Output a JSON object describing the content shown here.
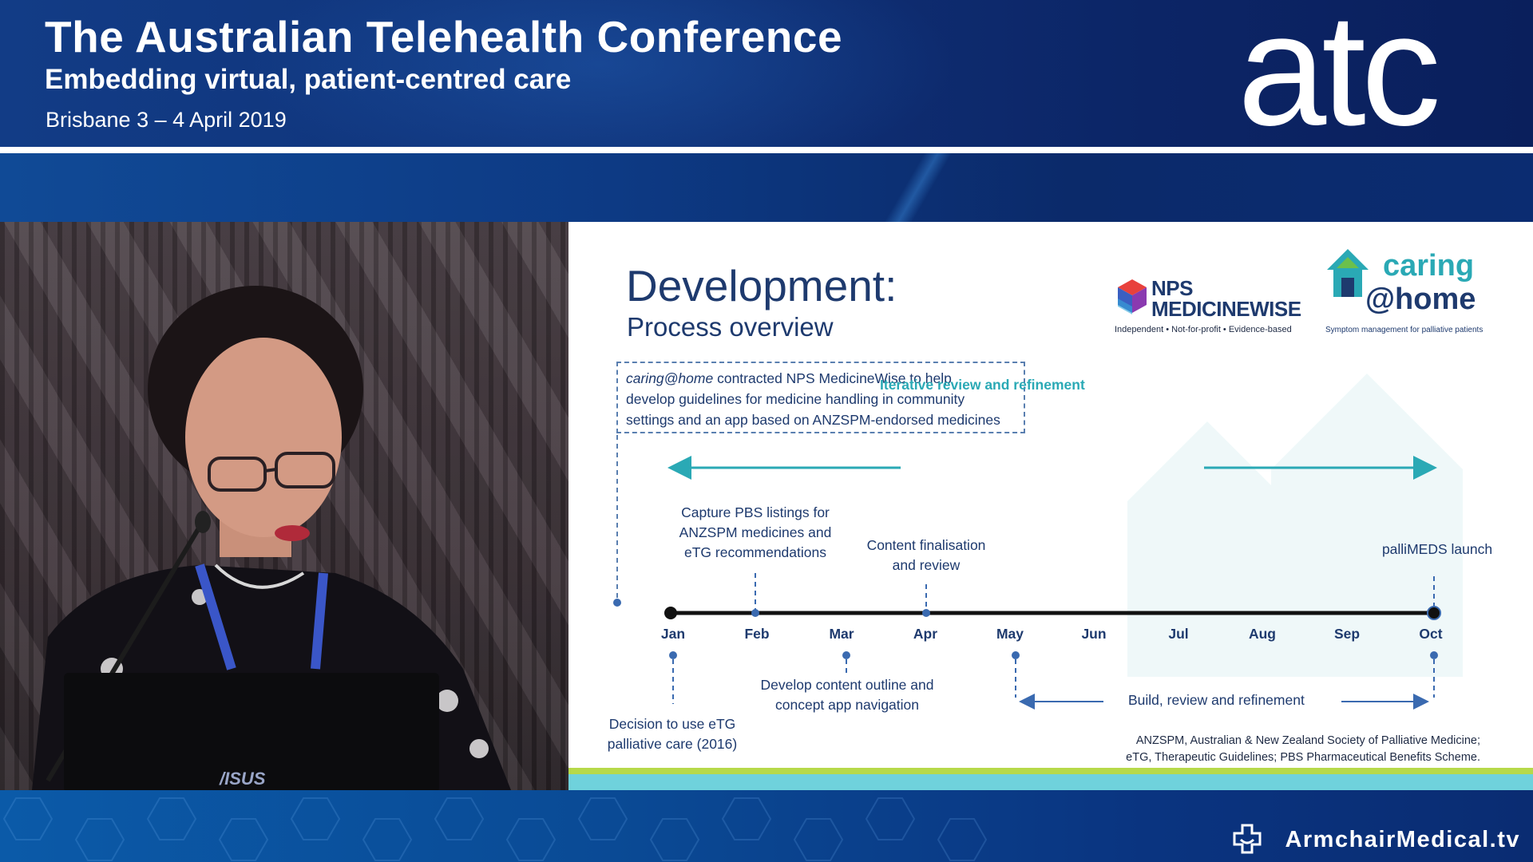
{
  "header": {
    "title": "The Australian Telehealth Conference",
    "subtitle": "Embedding virtual, patient-centred care",
    "place_date": "Brisbane 3 – 4 April 2019",
    "logo_text": "atc"
  },
  "speaker": {
    "laptop_brand": "/ISUS"
  },
  "slide": {
    "title": "Development:",
    "subtitle": "Process overview",
    "nps_logo": {
      "line1": "NPS",
      "line2": "MEDICINEWISE",
      "tagline": "Independent • Not-for-profit • Evidence-based"
    },
    "caring_logo": {
      "line1": "caring",
      "line2": "@home",
      "tagline": "Symptom management for palliative patients"
    },
    "note_box": {
      "brand": "caring@home",
      "text_line1": " contracted NPS MedicineWise to help",
      "text_line2": "develop guidelines for medicine handling in community",
      "text_line3": "settings and an app based on ANZSPM-endorsed medicines"
    },
    "iterative_label": "Iterative review and refinement",
    "months": [
      "Jan",
      "Feb",
      "Mar",
      "Apr",
      "May",
      "Jun",
      "Jul",
      "Aug",
      "Sep",
      "Oct"
    ],
    "events_above": {
      "feb": [
        "Capture PBS listings for",
        "ANZSPM medicines and",
        "eTG recommendations"
      ],
      "apr": [
        "Content finalisation",
        "and review"
      ],
      "oct": [
        "palliMEDS launch"
      ]
    },
    "events_below": {
      "jan": [
        "Decision to use eTG",
        "palliative care (2016)"
      ],
      "mar": [
        "Develop content outline and",
        "concept app navigation"
      ]
    },
    "build_label": "Build, review and refinement",
    "footnote": [
      "ANZSPM, Australian & New Zealand Society of Palliative Medicine;",
      "eTG, Therapeutic Guidelines; PBS Pharmaceutical Benefits Scheme."
    ]
  },
  "footer": {
    "brand": "ArmchairMedical.tv"
  },
  "colors": {
    "header_blue": "#0f3177",
    "slide_navy": "#1e3a6e",
    "teal": "#2aa9b5",
    "lime": "#b6d94a",
    "cyan_bar": "#6fd2dc"
  }
}
